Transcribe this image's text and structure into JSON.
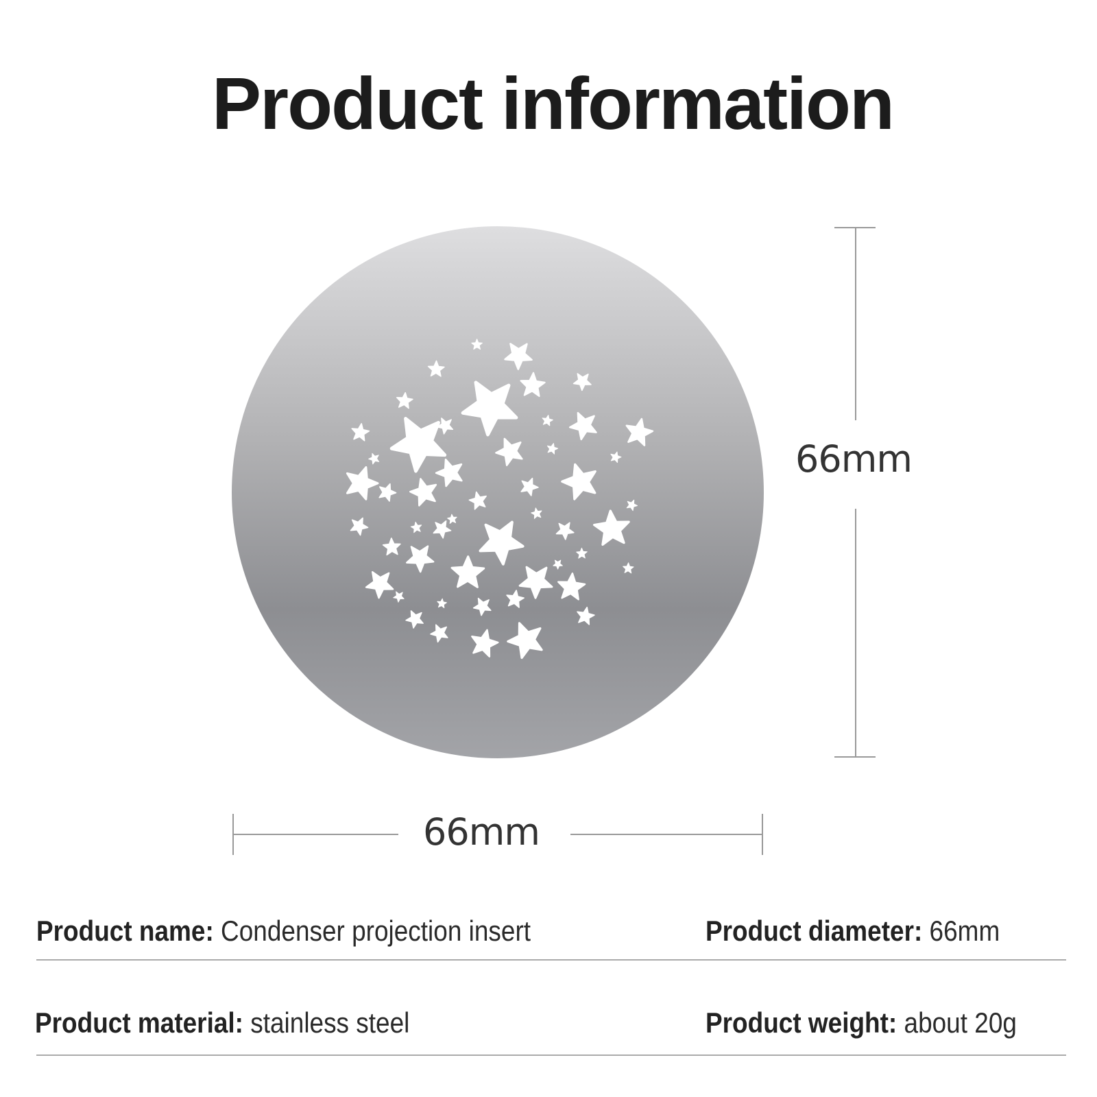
{
  "title": "Product information",
  "dimensions": {
    "height_label": "66mm",
    "width_label": "66mm"
  },
  "disc": {
    "pattern": "star-cutouts",
    "gradient_colors": [
      "#dedee0",
      "#b2b2b4",
      "#8d8e92",
      "#a3a4a8"
    ],
    "star_color": "#ffffff"
  },
  "specs": [
    {
      "label": "Product name:",
      "value": "Condenser projection insert"
    },
    {
      "label": "Product diameter:",
      "value": "66mm"
    },
    {
      "label": "Product material:",
      "value": "stainless steel"
    },
    {
      "label": "Product weight:",
      "value": "about 20g"
    }
  ]
}
